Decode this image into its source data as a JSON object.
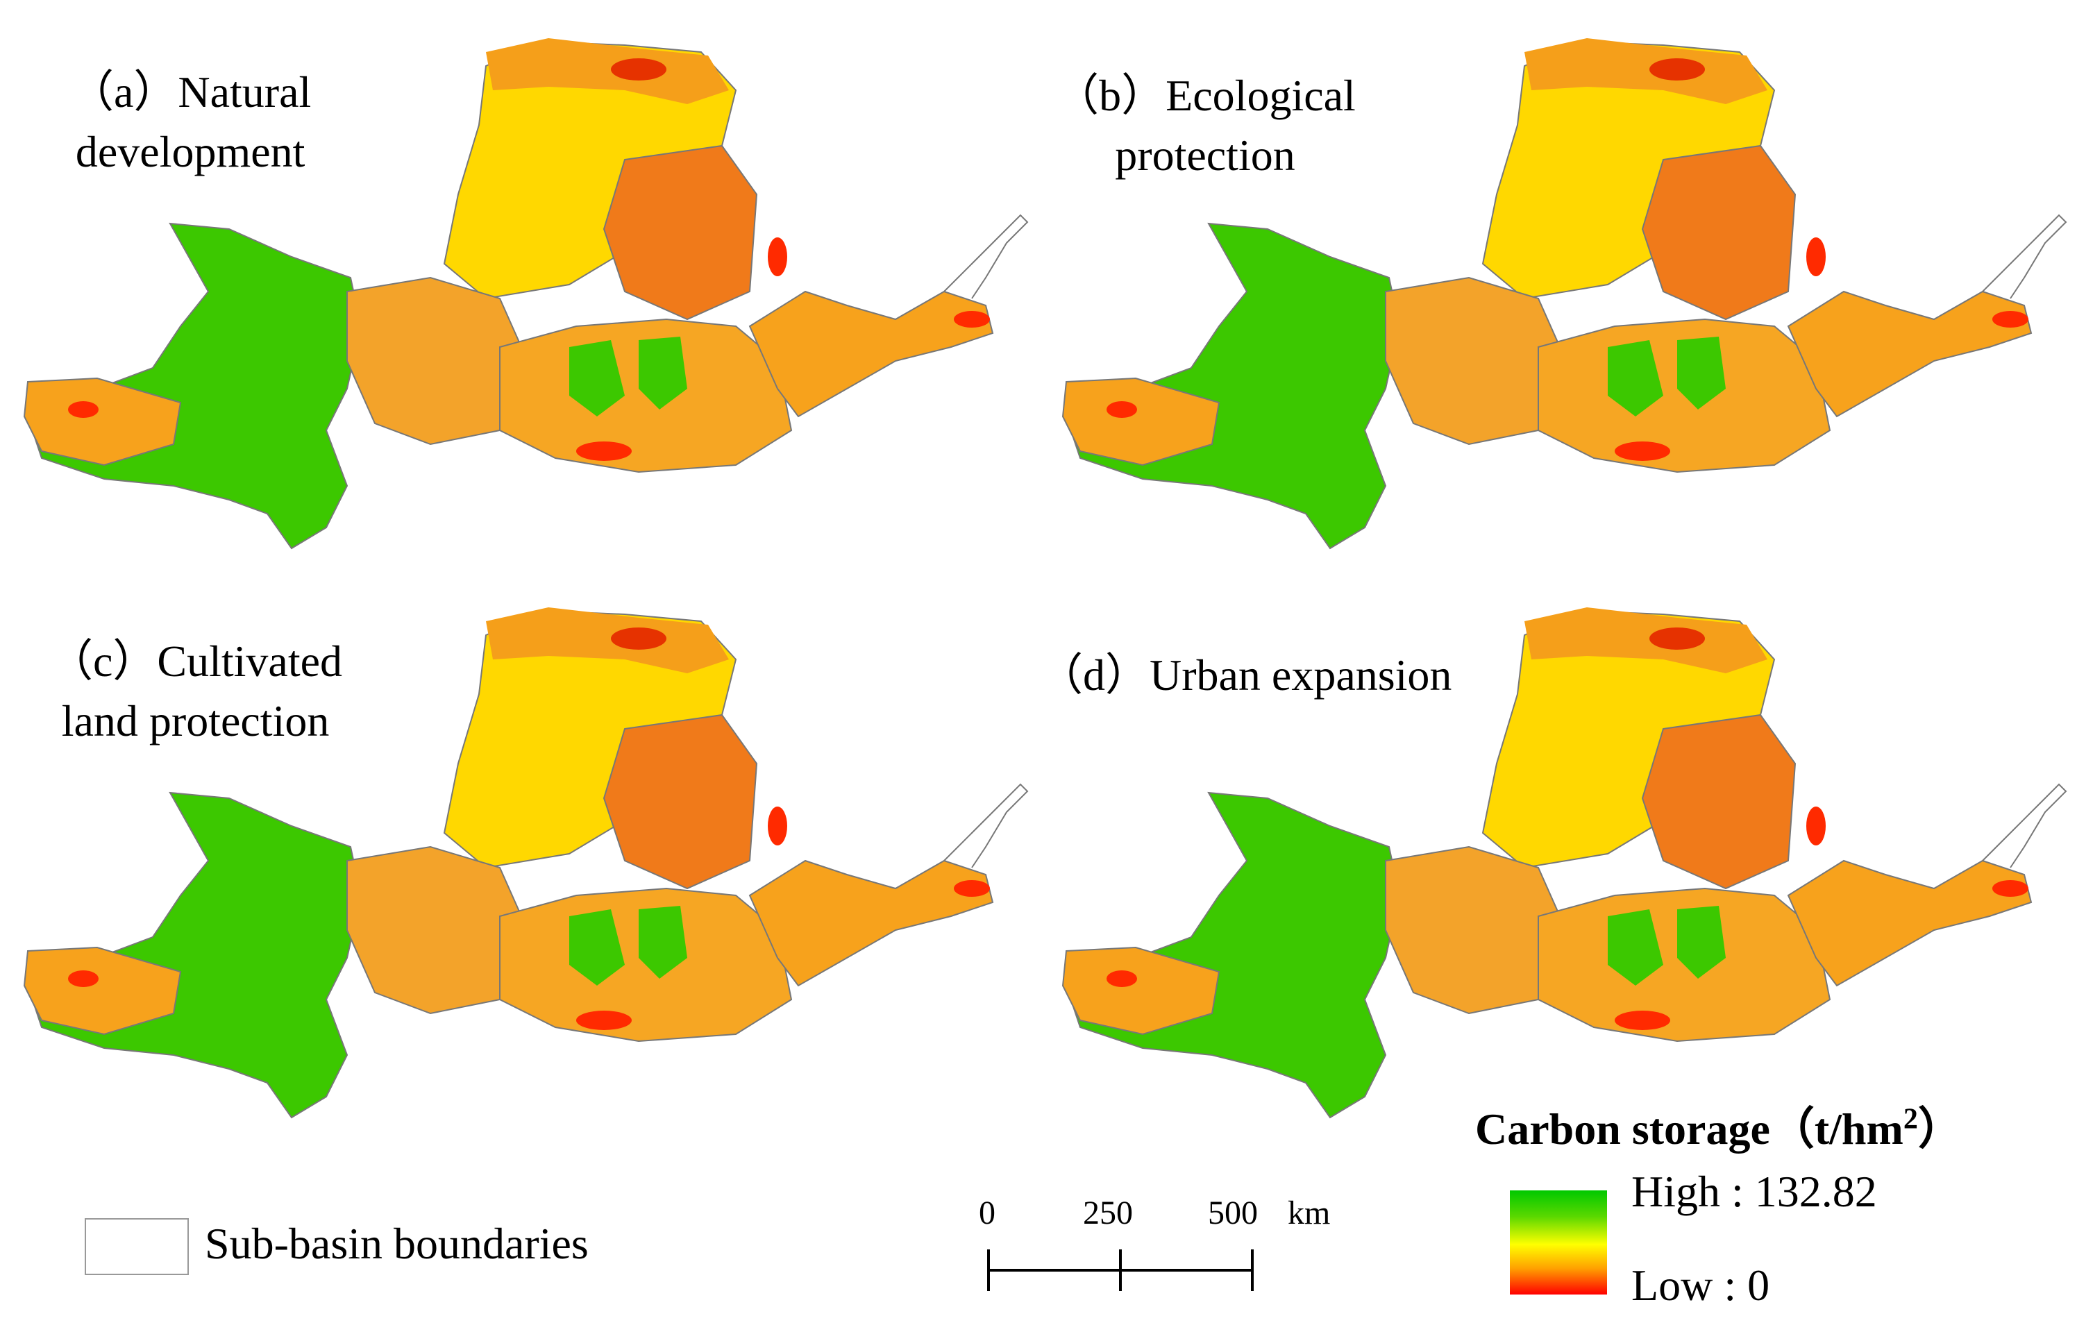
{
  "panels": [
    {
      "id": "a",
      "label": "（a）Natural\ndevelopment"
    },
    {
      "id": "b",
      "label": "（b）Ecological\nprotection"
    },
    {
      "id": "c",
      "label": "（c）Cultivated\nland protection"
    },
    {
      "id": "d",
      "label": "（d）Urban expansion"
    }
  ],
  "legend": {
    "title": "Carbon storage（t/hm",
    "title_sup": "2",
    "title_end": "）",
    "high_label": "High : 132.82",
    "low_label": "Low : 0",
    "high_value": 132.82,
    "low_value": 0,
    "colors": {
      "high": "#00c800",
      "mid": "#ffff00",
      "low": "#ff0000"
    }
  },
  "boundary_legend": {
    "label": "Sub-basin boundaries"
  },
  "scale_bar": {
    "ticks": [
      "0",
      "250",
      "500"
    ],
    "unit": "km"
  }
}
